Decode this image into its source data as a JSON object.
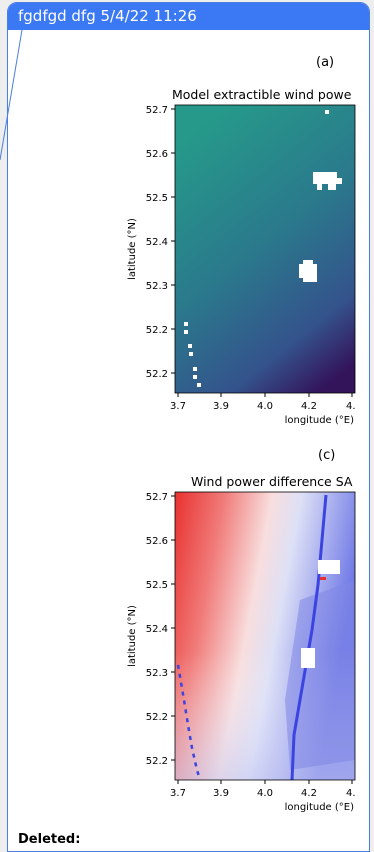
{
  "comment": {
    "header": "fgdfgd dfg 5/4/22 11:26",
    "footer_label": "Deleted:"
  },
  "figure_a": {
    "panel_label": "(a)",
    "title": "Model extractible wind powe",
    "ylabel": "latitude (°N)",
    "xlabel": "longitude (°E)",
    "yticks": [
      "52.7",
      "52.6",
      "52.5",
      "52.4",
      "52.3",
      "52.2",
      "52.2"
    ],
    "xticks": [
      "3.7",
      "3.9",
      "4.0",
      "4.2",
      "4."
    ]
  },
  "figure_c": {
    "panel_label": "(c)",
    "title": "Wind power difference SA",
    "ylabel": "latitude (°N)",
    "xlabel": "longitude (°E)",
    "yticks": [
      "52.7",
      "52.6",
      "52.5",
      "52.4",
      "52.3",
      "52.2",
      "52.2"
    ],
    "xticks": [
      "3.7",
      "3.9",
      "4.0",
      "4.2",
      "4."
    ]
  },
  "colors": {
    "header_bg": "#3b78f4",
    "border": "#4a7fe0",
    "viridis_top": "#26998a",
    "viridis_bottom": "#33135a",
    "diff_positive": "#e8312f",
    "diff_negative": "#3b44e0"
  }
}
